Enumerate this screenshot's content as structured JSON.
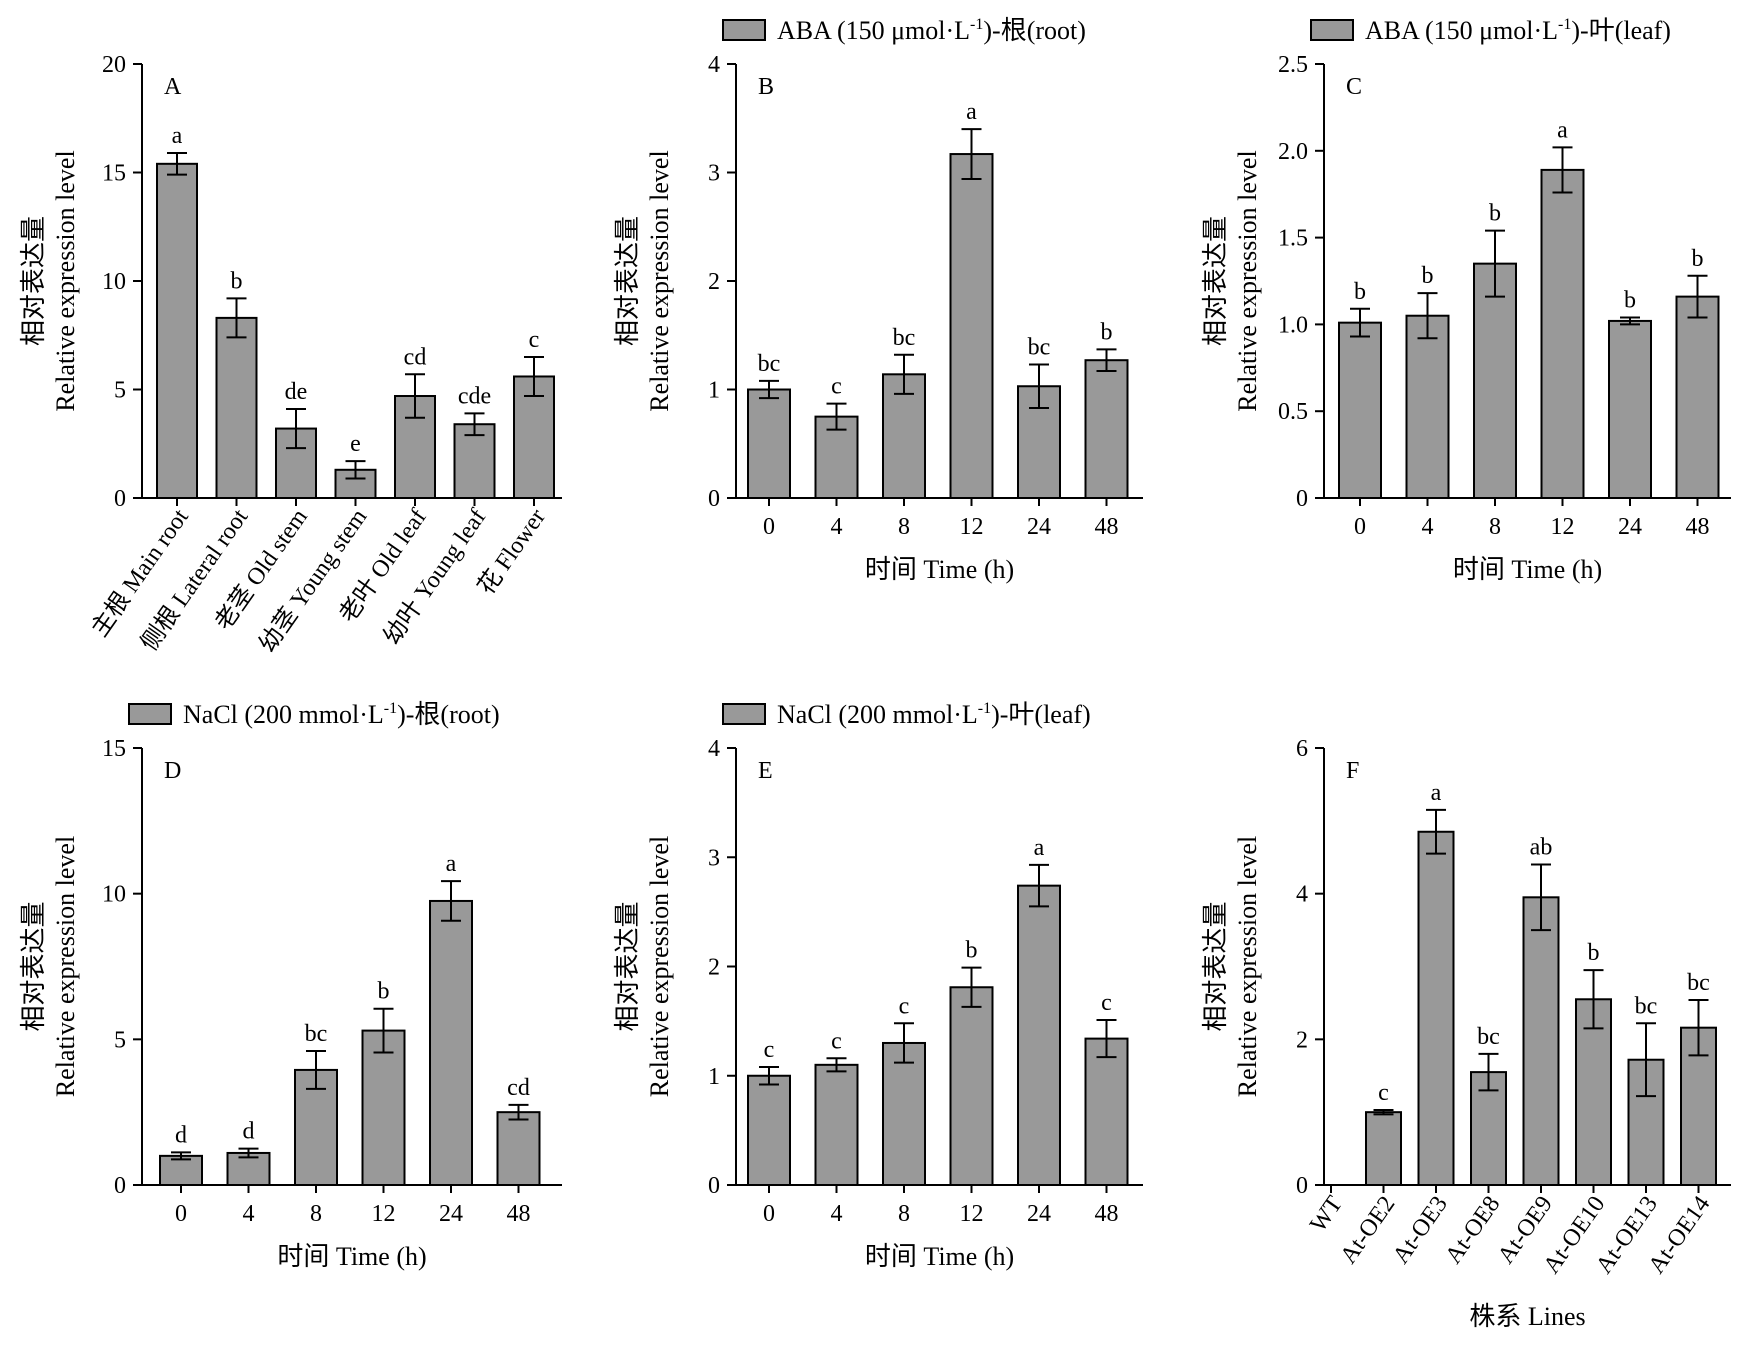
{
  "figure": {
    "colors": {
      "bar_fill": "#999999",
      "stroke": "#000000",
      "background": "#ffffff"
    },
    "y_title_cn": "相对表达量",
    "y_title_en": "Relative expression level"
  },
  "chart_data": [
    {
      "id": "A",
      "type": "bar",
      "letter": "A",
      "legend": "",
      "categories": [
        "主根 Main root",
        "侧根 Lateral root",
        "老茎 Old stem",
        "幼茎 Young stem",
        "老叶 Old leaf",
        "幼叶 Young leaf",
        "花 Flower"
      ],
      "values": [
        15.4,
        8.3,
        3.2,
        1.3,
        4.7,
        3.4,
        5.6
      ],
      "errors": [
        0.5,
        0.9,
        0.9,
        0.4,
        1.0,
        0.5,
        0.9
      ],
      "significance": [
        "a",
        "b",
        "de",
        "e",
        "cd",
        "cde",
        "c"
      ],
      "yticks": [
        "0",
        "5",
        "10",
        "15",
        "20"
      ],
      "ylim": [
        0,
        20
      ],
      "xlabel": "",
      "ylabel": "相对表达量 Relative expression level",
      "tilted_labels": true
    },
    {
      "id": "B",
      "type": "bar",
      "letter": "B",
      "legend": "ABA (150 μmol·L-1)-根(root)",
      "legend_parts": {
        "pre": "ABA (150 μmol·L",
        "sup": "-1",
        "post": ")-根(root)"
      },
      "categories": [
        "0",
        "4",
        "8",
        "12",
        "24",
        "48"
      ],
      "values": [
        1.0,
        0.75,
        1.14,
        3.17,
        1.03,
        1.27
      ],
      "errors": [
        0.08,
        0.12,
        0.18,
        0.23,
        0.2,
        0.1
      ],
      "significance": [
        "bc",
        "c",
        "bc",
        "a",
        "bc",
        "b"
      ],
      "yticks": [
        "0",
        "1",
        "2",
        "3",
        "4"
      ],
      "ylim": [
        0,
        4
      ],
      "xlabel": "时间 Time (h)",
      "ylabel": "相对表达量 Relative expression level",
      "tilted_labels": false
    },
    {
      "id": "C",
      "type": "bar",
      "letter": "C",
      "legend": "ABA (150 μmol·L-1)-叶(leaf)",
      "legend_parts": {
        "pre": "ABA (150 μmol·L",
        "sup": "-1",
        "post": ")-叶(leaf)"
      },
      "categories": [
        "0",
        "4",
        "8",
        "12",
        "24",
        "48"
      ],
      "values": [
        1.01,
        1.05,
        1.35,
        1.89,
        1.02,
        1.16
      ],
      "errors": [
        0.08,
        0.13,
        0.19,
        0.13,
        0.02,
        0.12
      ],
      "significance": [
        "b",
        "b",
        "b",
        "a",
        "b",
        "b"
      ],
      "yticks": [
        "0",
        "0.5",
        "1.0",
        "1.5",
        "2.0",
        "2.5"
      ],
      "ylim": [
        0,
        2.5
      ],
      "xlabel": "时间 Time (h)",
      "ylabel": "相对表达量 Relative expression level",
      "tilted_labels": false
    },
    {
      "id": "D",
      "type": "bar",
      "letter": "D",
      "legend": "NaCl (200 mmol·L-1)-根(root)",
      "legend_parts": {
        "pre": "NaCl (200 mmol·L",
        "sup": "-1",
        "post": ")-根(root)"
      },
      "categories": [
        "0",
        "4",
        "8",
        "12",
        "24",
        "48"
      ],
      "values": [
        1.0,
        1.1,
        3.95,
        5.3,
        9.75,
        2.5
      ],
      "errors": [
        0.12,
        0.15,
        0.65,
        0.75,
        0.68,
        0.25
      ],
      "significance": [
        "d",
        "d",
        "bc",
        "b",
        "a",
        "cd"
      ],
      "yticks": [
        "0",
        "5",
        "10",
        "15"
      ],
      "ylim": [
        0,
        15
      ],
      "xlabel": "时间 Time (h)",
      "ylabel": "相对表达量 Relative expression level",
      "tilted_labels": false
    },
    {
      "id": "E",
      "type": "bar",
      "letter": "E",
      "legend": "NaCl (200 mmol·L-1)-叶(leaf)",
      "legend_parts": {
        "pre": "NaCl (200 mmol·L",
        "sup": "-1",
        "post": ")-叶(leaf)"
      },
      "categories": [
        "0",
        "4",
        "8",
        "12",
        "24",
        "48"
      ],
      "values": [
        1.0,
        1.1,
        1.3,
        1.81,
        2.74,
        1.34
      ],
      "errors": [
        0.08,
        0.06,
        0.18,
        0.18,
        0.19,
        0.17
      ],
      "significance": [
        "c",
        "c",
        "c",
        "b",
        "a",
        "c"
      ],
      "yticks": [
        "0",
        "1",
        "2",
        "3",
        "4"
      ],
      "ylim": [
        0,
        4
      ],
      "xlabel": "时间 Time (h)",
      "ylabel": "相对表达量 Relative expression level",
      "tilted_labels": false
    },
    {
      "id": "F",
      "type": "bar",
      "letter": "F",
      "legend": "",
      "categories": [
        "WT",
        "At-OE2",
        "At-OE3",
        "At-OE8",
        "At-OE9",
        "At-OE10",
        "At-OE13",
        "At-OE14"
      ],
      "values": [
        0,
        1.0,
        4.85,
        1.55,
        3.95,
        2.55,
        1.72,
        2.16
      ],
      "errors": [
        0,
        0.03,
        0.3,
        0.25,
        0.45,
        0.4,
        0.5,
        0.38
      ],
      "significance": [
        "",
        "c",
        "a",
        "bc",
        "ab",
        "b",
        "bc",
        "bc"
      ],
      "yticks": [
        "0",
        "2",
        "4",
        "6"
      ],
      "ylim": [
        0,
        6
      ],
      "xlabel": "株系 Lines",
      "ylabel": "相对表达量 Relative expression level",
      "tilted_labels": true
    }
  ]
}
